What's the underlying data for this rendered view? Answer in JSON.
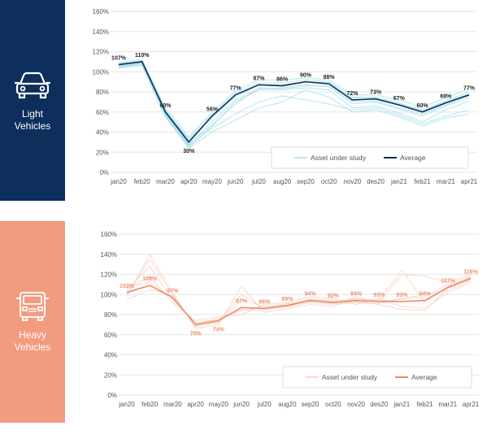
{
  "colors": {
    "light_panel": "#0e2e5c",
    "heavy_panel": "#f39b7e",
    "light_average": "#0e2e5c",
    "light_assets": "#9cdde8",
    "heavy_average": "#ee8b68",
    "heavy_assets": "#f5cdbe",
    "heavy_label": "#f08e6c"
  },
  "panels": {
    "light": {
      "label": "Light\nVehicles",
      "icon": "car-icon"
    },
    "heavy": {
      "label": "Heavy\nVehicles",
      "icon": "truck-icon"
    }
  },
  "chart_data": [
    {
      "type": "line",
      "categories": [
        "jan20",
        "feb20",
        "mar20",
        "apr20",
        "may20",
        "jun20",
        "jul20",
        "aug20",
        "sep20",
        "oct20",
        "nov20",
        "des20",
        "jan21",
        "feb21",
        "mar21",
        "apr21"
      ],
      "yticks": [
        "0%",
        "20%",
        "40%",
        "60%",
        "80%",
        "100%",
        "120%",
        "140%",
        "160%"
      ],
      "ylim": [
        0,
        160
      ],
      "grid": true,
      "legend": {
        "items": [
          "Asset under study",
          "Average"
        ],
        "placement": "bottom-right"
      },
      "series": [
        {
          "name": "Average",
          "values": [
            107,
            110,
            60,
            30,
            56,
            77,
            87,
            86,
            90,
            88,
            72,
            73,
            67,
            60,
            69,
            77
          ],
          "labels": [
            "107%",
            "110%",
            "60%",
            "30%",
            "56%",
            "77%",
            "87%",
            "86%",
            "90%",
            "88%",
            "72%",
            "73%",
            "67%",
            "60%",
            "69%",
            "77%"
          ]
        },
        {
          "name": "Asset under study",
          "values": [
            105,
            108,
            58,
            27,
            50,
            72,
            83,
            84,
            87,
            85,
            68,
            70,
            63,
            56,
            66,
            74
          ]
        },
        {
          "name": "Asset under study",
          "values": [
            108,
            111,
            62,
            33,
            58,
            79,
            89,
            89,
            92,
            90,
            74,
            75,
            69,
            62,
            71,
            80
          ]
        },
        {
          "name": "Asset under study",
          "values": [
            104,
            107,
            57,
            25,
            46,
            70,
            82,
            82,
            84,
            82,
            64,
            66,
            59,
            50,
            62,
            71
          ]
        },
        {
          "name": "Asset under study",
          "values": [
            109,
            112,
            64,
            35,
            60,
            81,
            92,
            92,
            94,
            92,
            77,
            77,
            72,
            65,
            74,
            83
          ]
        },
        {
          "name": "Asset under study",
          "values": [
            106,
            109,
            59,
            28,
            47,
            68,
            84,
            83,
            86,
            86,
            70,
            71,
            64,
            58,
            67,
            76
          ]
        },
        {
          "name": "Asset under study",
          "values": [
            107,
            110,
            61,
            32,
            55,
            75,
            87,
            87,
            90,
            89,
            75,
            74,
            68,
            61,
            70,
            78
          ]
        },
        {
          "name": "Asset under study",
          "values": [
            105,
            108,
            56,
            26,
            44,
            58,
            70,
            76,
            72,
            68,
            62,
            64,
            57,
            48,
            56,
            62
          ]
        },
        {
          "name": "Asset under study",
          "values": [
            104,
            106,
            55,
            24,
            40,
            52,
            64,
            70,
            82,
            75,
            60,
            62,
            55,
            46,
            54,
            58
          ]
        }
      ]
    },
    {
      "type": "line",
      "categories": [
        "jan20",
        "feb20",
        "mar20",
        "apr20",
        "may20",
        "jun20",
        "jul20",
        "aug20",
        "sep20",
        "oct20",
        "nov20",
        "des20",
        "jan21",
        "feb21",
        "mar21",
        "apr21"
      ],
      "yticks": [
        "0%",
        "20%",
        "40%",
        "60%",
        "80%",
        "100%",
        "120%",
        "140%",
        "160%"
      ],
      "ylim": [
        0,
        160
      ],
      "grid": true,
      "legend": {
        "items": [
          "Asset under study",
          "Average"
        ],
        "placement": "bottom-right"
      },
      "series": [
        {
          "name": "Average",
          "values": [
            102,
            109,
            97,
            70,
            74,
            87,
            86,
            89,
            94,
            92,
            94,
            93,
            93,
            94,
            107,
            116
          ],
          "labels": [
            "102%",
            "109%",
            "97%",
            "70%",
            "74%",
            "87%",
            "86%",
            "89%",
            "94%",
            "92%",
            "94%",
            "93%",
            "93%",
            "94%",
            "107%",
            "116%"
          ]
        },
        {
          "name": "Asset under study",
          "values": [
            100,
            135,
            100,
            68,
            72,
            95,
            88,
            90,
            95,
            93,
            96,
            94,
            95,
            98,
            110,
            118
          ]
        },
        {
          "name": "Asset under study",
          "values": [
            104,
            128,
            95,
            72,
            76,
            85,
            84,
            88,
            92,
            90,
            92,
            91,
            96,
            100,
            104,
            114
          ]
        },
        {
          "name": "Asset under study",
          "values": [
            98,
            140,
            102,
            66,
            70,
            108,
            82,
            86,
            90,
            88,
            98,
            92,
            120,
            118,
            112,
            120
          ]
        },
        {
          "name": "Asset under study",
          "values": [
            106,
            118,
            92,
            74,
            78,
            80,
            90,
            92,
            98,
            96,
            90,
            96,
            88,
            86,
            102,
            112
          ]
        },
        {
          "name": "Asset under study",
          "values": [
            95,
            105,
            99,
            69,
            73,
            100,
            86,
            89,
            96,
            94,
            95,
            95,
            124,
            92,
            108,
            117
          ]
        },
        {
          "name": "Asset under study",
          "values": [
            108,
            112,
            96,
            71,
            75,
            84,
            87,
            91,
            93,
            91,
            93,
            90,
            85,
            84,
            106,
            115
          ]
        }
      ]
    }
  ]
}
